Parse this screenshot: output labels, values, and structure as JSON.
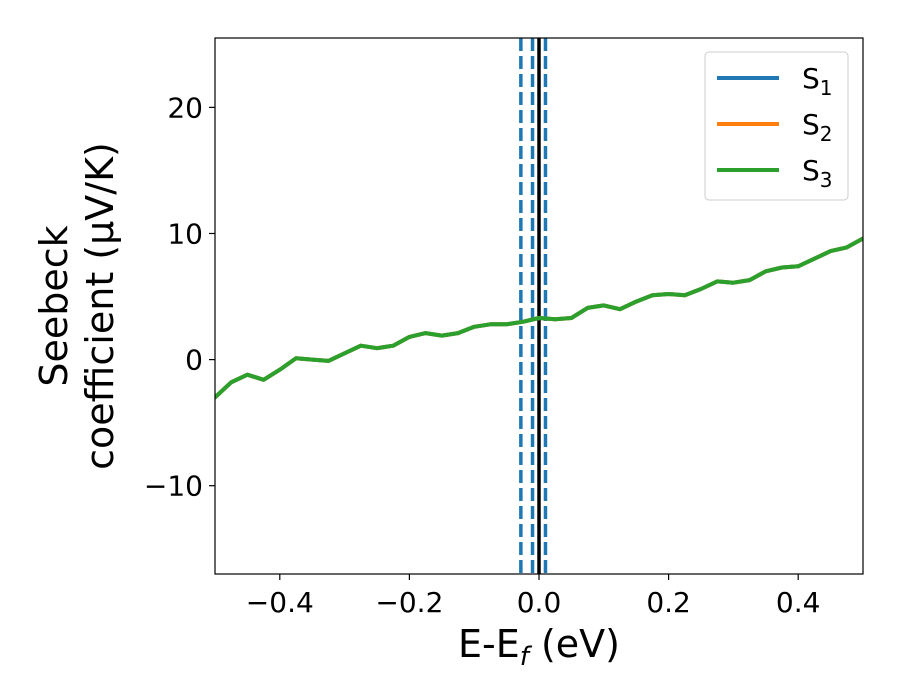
{
  "chart_data": {
    "type": "line",
    "xlabel": {
      "main": "E-E",
      "sub": "f",
      "unit": " (eV)"
    },
    "ylabel": {
      "line1": "Seebeck",
      "line2": "coefficient  (μV/K)"
    },
    "xlim": [
      -0.5,
      0.5
    ],
    "ylim": [
      -17,
      25.5
    ],
    "xticks": [
      -0.4,
      -0.2,
      0.0,
      0.2,
      0.4
    ],
    "xtick_labels": [
      "−0.4",
      "−0.2",
      "0.0",
      "0.2",
      "0.4"
    ],
    "yticks": [
      -10,
      0,
      10,
      20
    ],
    "ytick_labels": [
      "−10",
      "0",
      "10",
      "20"
    ],
    "grid": false,
    "legend_position": "top-right",
    "series": [
      {
        "name": "S",
        "sub": "1",
        "color": "#1f77b4",
        "x": [
          -0.5,
          -0.475,
          -0.45,
          -0.425,
          -0.4,
          -0.375,
          -0.35,
          -0.325,
          -0.3,
          -0.275,
          -0.25,
          -0.225,
          -0.2,
          -0.175,
          -0.15,
          -0.125,
          -0.1,
          -0.075,
          -0.05,
          -0.025,
          0.0,
          0.025,
          0.05,
          0.075,
          0.1,
          0.125,
          0.15,
          0.175,
          0.2,
          0.225,
          0.25,
          0.275,
          0.3,
          0.325,
          0.35,
          0.375,
          0.4,
          0.425,
          0.45,
          0.475,
          0.5
        ],
        "y": [
          -3.0,
          -1.8,
          -1.2,
          -1.6,
          -0.8,
          0.1,
          0.0,
          -0.1,
          0.5,
          1.1,
          0.9,
          1.1,
          1.8,
          2.1,
          1.9,
          2.1,
          2.6,
          2.8,
          2.8,
          3.0,
          3.3,
          3.2,
          3.3,
          4.1,
          4.3,
          4.0,
          4.6,
          5.1,
          5.2,
          5.1,
          5.6,
          6.2,
          6.1,
          6.3,
          7.0,
          7.3,
          7.4,
          8.0,
          8.6,
          8.9,
          9.6
        ]
      },
      {
        "name": "S",
        "sub": "2",
        "color": "#ff7f0e",
        "x": [
          -0.5,
          -0.475,
          -0.45,
          -0.425,
          -0.4,
          -0.375,
          -0.35,
          -0.325,
          -0.3,
          -0.275,
          -0.25,
          -0.225,
          -0.2,
          -0.175,
          -0.15,
          -0.125,
          -0.1,
          -0.075,
          -0.05,
          -0.025,
          0.0,
          0.025,
          0.05,
          0.075,
          0.1,
          0.125,
          0.15,
          0.175,
          0.2,
          0.225,
          0.25,
          0.275,
          0.3,
          0.325,
          0.35,
          0.375,
          0.4,
          0.425,
          0.45,
          0.475,
          0.5
        ],
        "y": [
          -3.0,
          -1.8,
          -1.2,
          -1.6,
          -0.8,
          0.1,
          0.0,
          -0.1,
          0.5,
          1.1,
          0.9,
          1.1,
          1.8,
          2.1,
          1.9,
          2.1,
          2.6,
          2.8,
          2.8,
          3.0,
          3.3,
          3.2,
          3.3,
          4.1,
          4.3,
          4.0,
          4.6,
          5.1,
          5.2,
          5.1,
          5.6,
          6.2,
          6.1,
          6.3,
          7.0,
          7.3,
          7.4,
          8.0,
          8.6,
          8.9,
          9.6
        ]
      },
      {
        "name": "S",
        "sub": "3",
        "color": "#2ca02c",
        "x": [
          -0.5,
          -0.475,
          -0.45,
          -0.425,
          -0.4,
          -0.375,
          -0.35,
          -0.325,
          -0.3,
          -0.275,
          -0.25,
          -0.225,
          -0.2,
          -0.175,
          -0.15,
          -0.125,
          -0.1,
          -0.075,
          -0.05,
          -0.025,
          0.0,
          0.025,
          0.05,
          0.075,
          0.1,
          0.125,
          0.15,
          0.175,
          0.2,
          0.225,
          0.25,
          0.275,
          0.3,
          0.325,
          0.35,
          0.375,
          0.4,
          0.425,
          0.45,
          0.475,
          0.5
        ],
        "y": [
          -3.0,
          -1.8,
          -1.2,
          -1.6,
          -0.8,
          0.1,
          0.0,
          -0.1,
          0.5,
          1.1,
          0.9,
          1.1,
          1.8,
          2.1,
          1.9,
          2.1,
          2.6,
          2.8,
          2.8,
          3.0,
          3.3,
          3.2,
          3.3,
          4.1,
          4.3,
          4.0,
          4.6,
          5.1,
          5.2,
          5.1,
          5.6,
          6.2,
          6.1,
          6.3,
          7.0,
          7.3,
          7.4,
          8.0,
          8.6,
          8.9,
          9.6
        ]
      }
    ],
    "vlines": [
      {
        "x": -0.028,
        "style": "dashed",
        "color": "#1f77b4"
      },
      {
        "x": -0.01,
        "style": "dashed",
        "color": "#1f77b4"
      },
      {
        "x": 0.0,
        "style": "solid",
        "color": "#000000"
      },
      {
        "x": 0.01,
        "style": "dashed",
        "color": "#1f77b4"
      }
    ]
  }
}
